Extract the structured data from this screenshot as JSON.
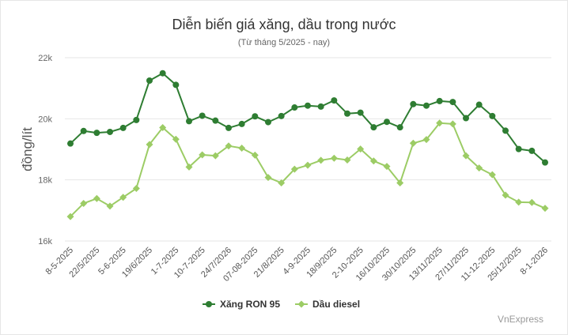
{
  "chart_data": {
    "type": "line",
    "title": "Diễn biến giá xăng, dầu trong nước",
    "subtitle": "(Từ tháng 5/2025 - nay)",
    "ylabel": "đồng/lít",
    "xlabel": "",
    "ylim": [
      16000,
      22000
    ],
    "yticks": [
      16000,
      18000,
      20000,
      22000
    ],
    "ytick_labels": [
      "16k",
      "18k",
      "20k",
      "22k"
    ],
    "grid": true,
    "legend_position": "bottom-center",
    "credit": "VnExpress",
    "x_tick_labels": [
      "8-5-2025",
      "22/5/2025",
      "5-6-2025",
      "19/6/2025",
      "1-7-2025",
      "10-7-2025",
      "24/7/2026",
      "07-08-2025",
      "21/8/2025",
      "4-9-2025",
      "18/9/2025",
      "2-10-2025",
      "16/10/2025",
      "30/10/2025",
      "13/11/2025",
      "27/11/2025",
      "11-12-2025",
      "25/12/2025",
      "8-1-2026"
    ],
    "series": [
      {
        "name": "Xăng RON 95",
        "color": "#2e7d32",
        "values": [
          19190,
          19600,
          19540,
          19570,
          19700,
          19960,
          21250,
          21490,
          21110,
          19920,
          20100,
          19940,
          19700,
          19830,
          20080,
          19890,
          20090,
          20370,
          20430,
          20400,
          20600,
          20170,
          20200,
          19720,
          19900,
          19720,
          20480,
          20430,
          20580,
          20550,
          20020,
          20460,
          20090,
          19610,
          19010,
          18950,
          18570
        ]
      },
      {
        "name": "Dầu diesel",
        "color": "#9ccc65",
        "values": [
          16800,
          17230,
          17390,
          17140,
          17430,
          17720,
          19160,
          19710,
          19330,
          18420,
          18820,
          18790,
          19110,
          19040,
          18810,
          18080,
          17900,
          18350,
          18480,
          18640,
          18710,
          18650,
          19010,
          18620,
          18440,
          17900,
          19200,
          19320,
          19860,
          19830,
          18790,
          18390,
          18170,
          17500,
          17270,
          17260,
          17070
        ]
      }
    ]
  }
}
